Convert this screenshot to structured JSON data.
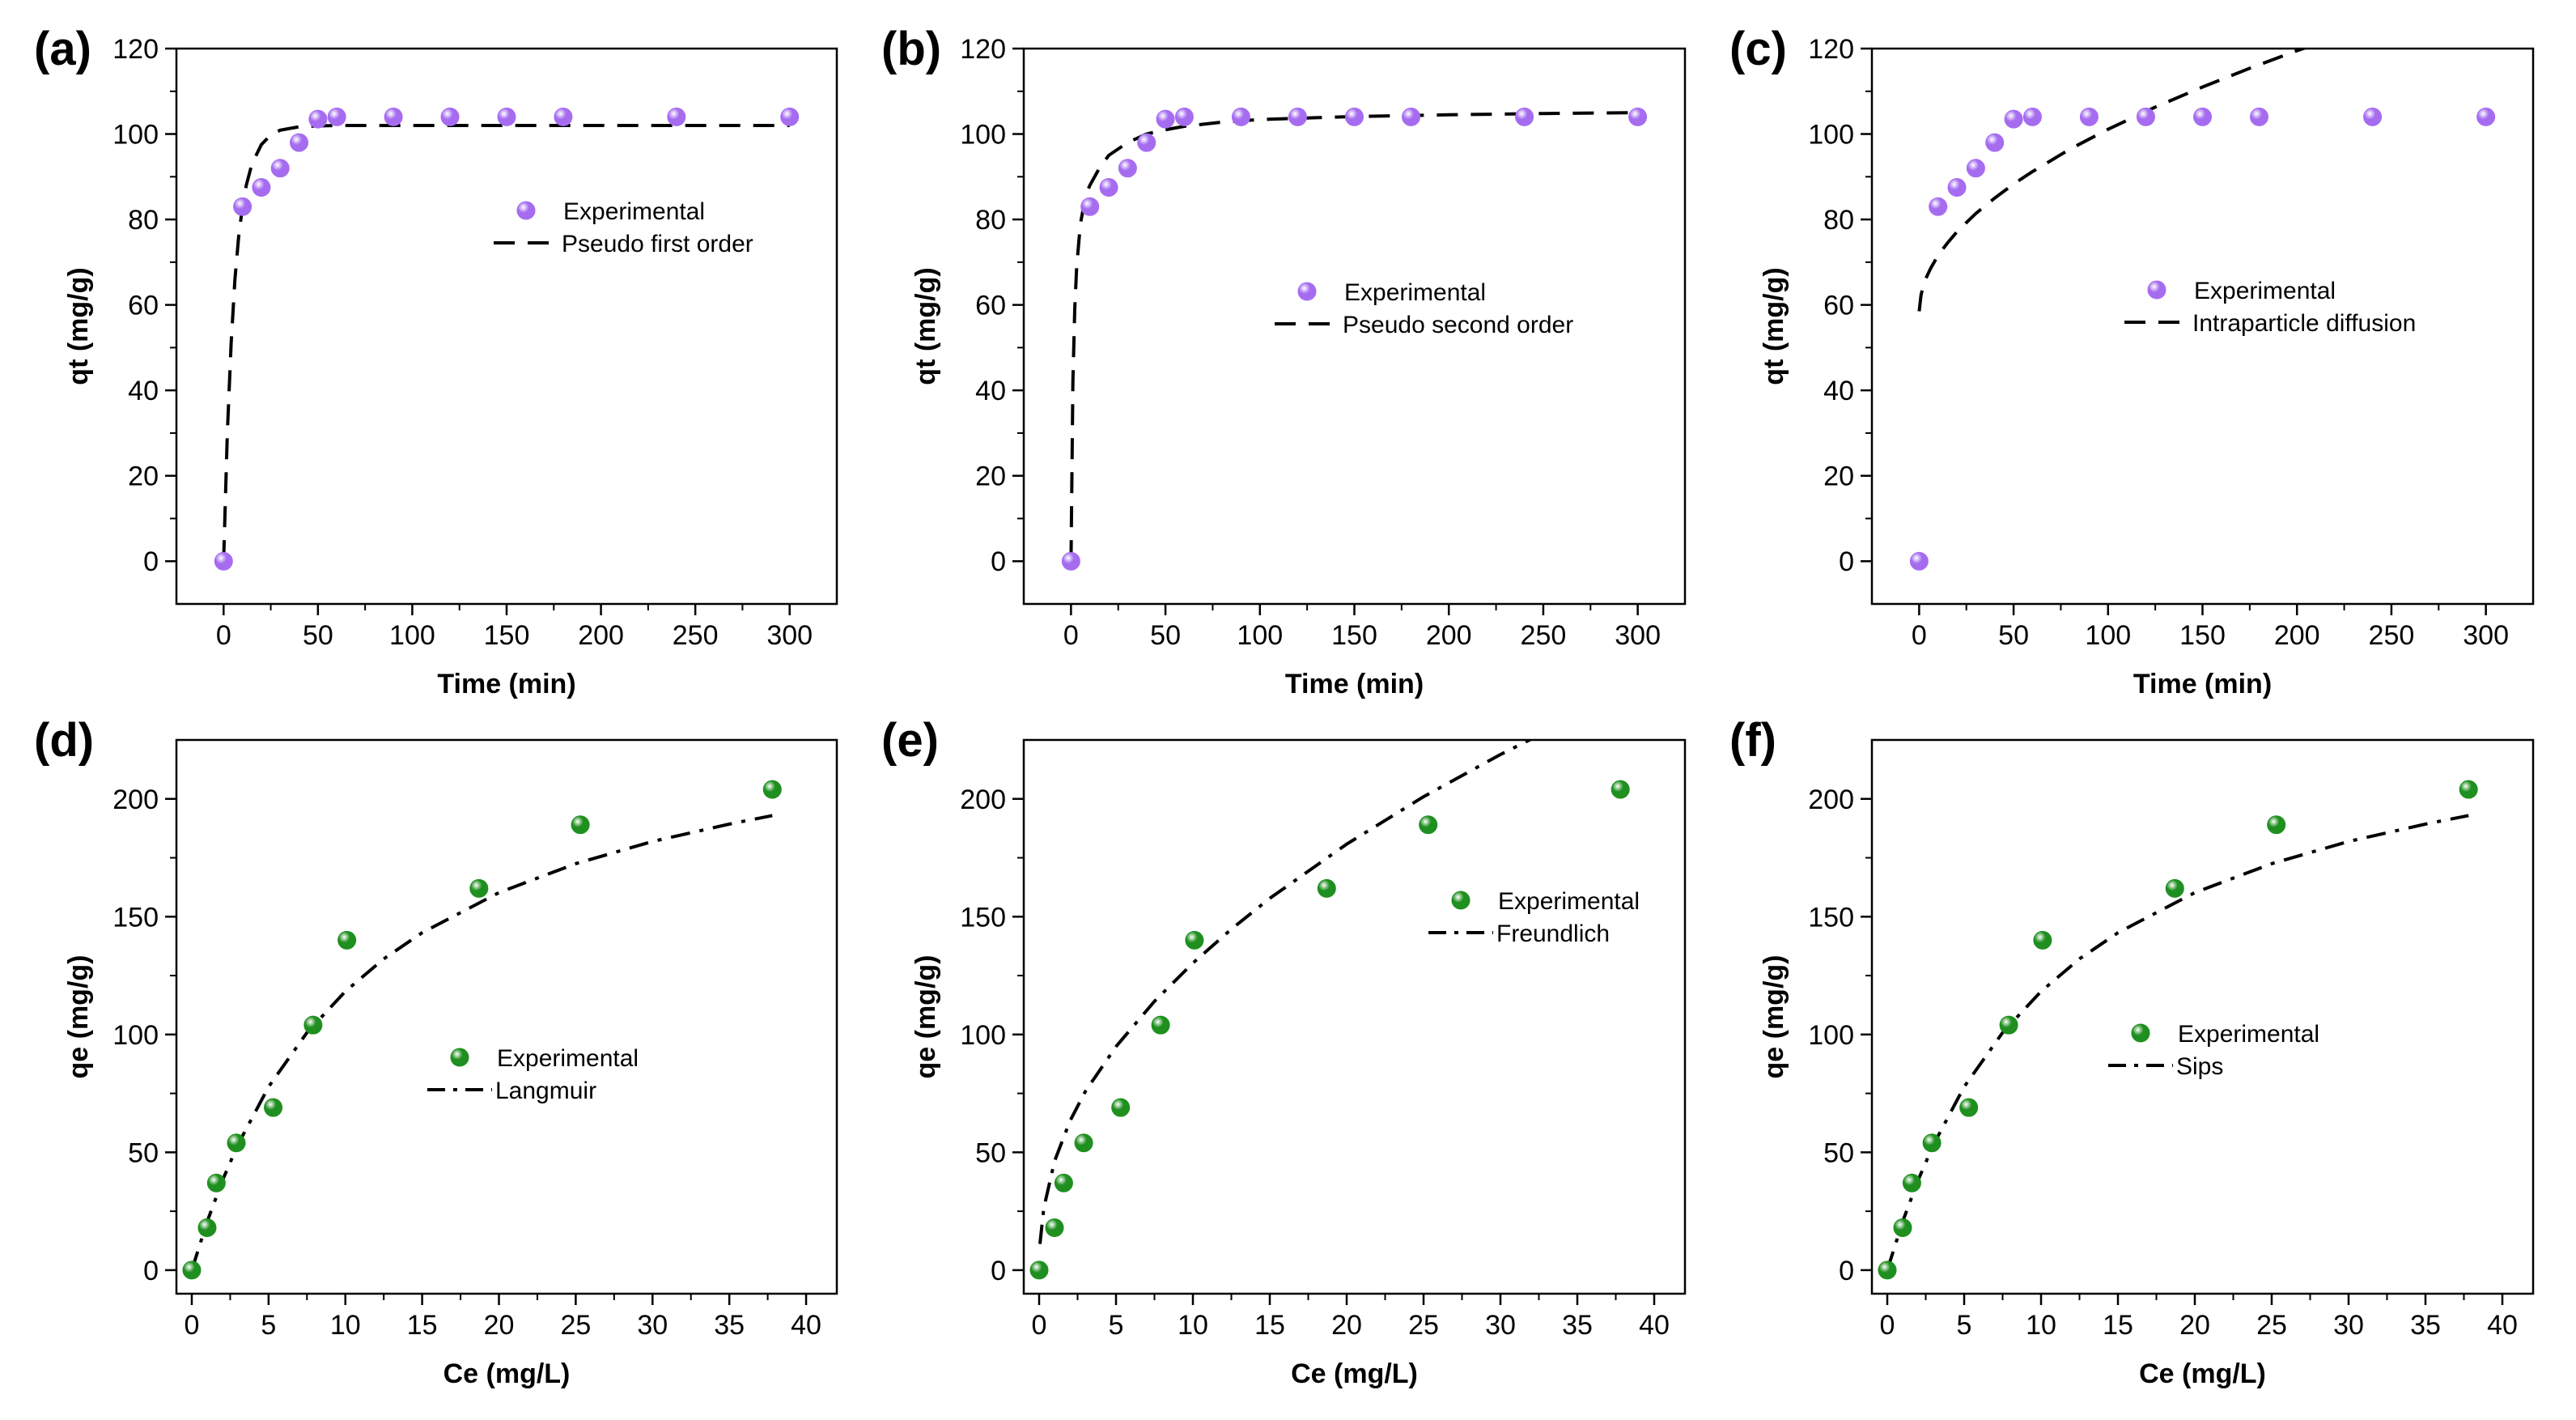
{
  "colors": {
    "kinetic_marker": "#a66cf0",
    "isotherm_marker": "#1f8f1f",
    "fit_line": "#000000"
  },
  "chart_data": [
    {
      "type": "scatter",
      "panel_label": "(a)",
      "xlabel": "Time (min)",
      "ylabel": "qt (mg/g)",
      "xlim": [
        -25,
        325
      ],
      "ylim": [
        -10,
        120
      ],
      "xticks": [
        0,
        50,
        100,
        150,
        200,
        250,
        300
      ],
      "yticks": [
        0,
        20,
        40,
        60,
        80,
        100,
        120
      ],
      "legend_position": "center-right",
      "series": [
        {
          "name": "Experimental",
          "kind": "scatter",
          "marker_color": "#a66cf0",
          "x": [
            0,
            10,
            20,
            30,
            40,
            50,
            60,
            90,
            120,
            150,
            180,
            240,
            300
          ],
          "y": [
            0,
            83,
            87.5,
            92,
            98,
            103.5,
            104,
            104,
            104,
            104,
            104,
            104,
            104
          ]
        },
        {
          "name": "Pseudo first order",
          "kind": "line",
          "dash": "dashed",
          "x": [
            0,
            2,
            4,
            6,
            8,
            10,
            12,
            15,
            20,
            25,
            30,
            40,
            50,
            60,
            80,
            100,
            150,
            200,
            250,
            300
          ],
          "y": [
            0,
            30,
            51,
            66,
            76,
            83,
            88,
            93,
            97.5,
            99.8,
            100.9,
            101.7,
            101.9,
            102,
            102,
            102,
            102,
            102,
            102,
            102
          ]
        }
      ]
    },
    {
      "type": "scatter",
      "panel_label": "(b)",
      "xlabel": "Time (min)",
      "ylabel": "qt (mg/g)",
      "xlim": [
        -25,
        325
      ],
      "ylim": [
        -10,
        120
      ],
      "xticks": [
        0,
        50,
        100,
        150,
        200,
        250,
        300
      ],
      "yticks": [
        0,
        20,
        40,
        60,
        80,
        100,
        120
      ],
      "legend_position": "center-right",
      "series": [
        {
          "name": "Experimental",
          "kind": "scatter",
          "marker_color": "#a66cf0",
          "x": [
            0,
            10,
            20,
            30,
            40,
            50,
            60,
            90,
            120,
            150,
            180,
            240,
            300
          ],
          "y": [
            0,
            83,
            87.5,
            92,
            98,
            103.5,
            104,
            104,
            104,
            104,
            104,
            104,
            104
          ]
        },
        {
          "name": "Pseudo second order",
          "kind": "line",
          "dash": "dashed",
          "x": [
            0,
            1,
            2,
            3,
            5,
            8,
            10,
            15,
            20,
            30,
            40,
            50,
            60,
            80,
            100,
            150,
            200,
            250,
            300
          ],
          "y": [
            0,
            42,
            59,
            69,
            79,
            86,
            88,
            92,
            95,
            98,
            100,
            101,
            101.8,
            102.8,
            103.4,
            104.1,
            104.5,
            104.8,
            105
          ]
        }
      ]
    },
    {
      "type": "scatter",
      "panel_label": "(c)",
      "xlabel": "Time (min)",
      "ylabel": "qt (mg/g)",
      "xlim": [
        -25,
        325
      ],
      "ylim": [
        -10,
        120
      ],
      "xticks": [
        0,
        50,
        100,
        150,
        200,
        250,
        300
      ],
      "yticks": [
        0,
        20,
        40,
        60,
        80,
        100,
        120
      ],
      "legend_position": "center-right",
      "series": [
        {
          "name": "Experimental",
          "kind": "scatter",
          "marker_color": "#a66cf0",
          "x": [
            0,
            10,
            20,
            30,
            40,
            50,
            60,
            90,
            120,
            150,
            180,
            240,
            300
          ],
          "y": [
            0,
            83,
            87.5,
            92,
            98,
            103.5,
            104,
            104,
            104,
            104,
            104,
            104,
            104
          ]
        },
        {
          "name": "Intraparticle diffusion",
          "kind": "line",
          "dash": "dashed",
          "x": [
            0,
            1,
            2,
            4,
            6,
            10,
            15,
            20,
            30,
            40,
            50,
            60,
            80,
            100,
            125,
            150,
            175,
            200,
            225,
            250,
            258
          ],
          "y": [
            58.5,
            62.3,
            64.1,
            66.6,
            68.5,
            71.6,
            74.5,
            77.1,
            81.4,
            85,
            88.3,
            91.2,
            96.5,
            101.1,
            106.3,
            111,
            115.4,
            119.5,
            123.3,
            126.9,
            128
          ]
        }
      ]
    },
    {
      "type": "scatter",
      "panel_label": "(d)",
      "xlabel": "Ce (mg/L)",
      "ylabel": "qe (mg/g)",
      "xlim": [
        -1,
        42
      ],
      "ylim": [
        -10,
        225
      ],
      "xticks": [
        0,
        5,
        10,
        15,
        20,
        25,
        30,
        35,
        40
      ],
      "yticks": [
        0,
        50,
        100,
        150,
        200
      ],
      "legend_position": "center",
      "series": [
        {
          "name": "Experimental",
          "kind": "scatter",
          "marker_color": "#1f8f1f",
          "x": [
            0,
            1,
            1.6,
            2.9,
            5.3,
            7.9,
            10.1,
            18.7,
            25.3,
            37.8
          ],
          "y": [
            0,
            18,
            37,
            54,
            69,
            104,
            140,
            162,
            189,
            204
          ]
        },
        {
          "name": "Langmuir",
          "kind": "line",
          "dash": "dashdot",
          "x": [
            0,
            1,
            2,
            3,
            5,
            7.5,
            10,
            12.5,
            15,
            20,
            25,
            30,
            35,
            37.8
          ],
          "y": [
            0,
            20.6,
            38.1,
            53.2,
            77.8,
            100.8,
            118.3,
            132.1,
            143.2,
            160.2,
            172.5,
            181.9,
            189.3,
            192.9
          ]
        }
      ]
    },
    {
      "type": "scatter",
      "panel_label": "(e)",
      "xlabel": "Ce (mg/L)",
      "ylabel": "qe (mg/g)",
      "xlim": [
        -1,
        42
      ],
      "ylim": [
        -10,
        225
      ],
      "xticks": [
        0,
        5,
        10,
        15,
        20,
        25,
        30,
        35,
        40
      ],
      "yticks": [
        0,
        50,
        100,
        150,
        200
      ],
      "legend_position": "center-right",
      "series": [
        {
          "name": "Experimental",
          "kind": "scatter",
          "marker_color": "#1f8f1f",
          "x": [
            0,
            1,
            1.6,
            2.9,
            5.3,
            7.9,
            10.1,
            18.7,
            25.3,
            37.8
          ],
          "y": [
            0,
            18,
            37,
            54,
            69,
            104,
            140,
            162,
            189,
            204
          ]
        },
        {
          "name": "Freundlich",
          "kind": "line",
          "dash": "dashdot",
          "x": [
            0.05,
            0.3,
            1,
            2,
            3,
            5,
            7.5,
            10,
            12.5,
            15,
            20,
            25,
            30,
            35,
            37.8
          ],
          "y": [
            11.1,
            26.2,
            46.2,
            63.2,
            75.8,
            94.9,
            114.1,
            130.3,
            144.7,
            157.8,
            180.8,
            200.9,
            218.8,
            235.2,
            243.9
          ]
        }
      ]
    },
    {
      "type": "scatter",
      "panel_label": "(f)",
      "xlabel": "Ce (mg/L)",
      "ylabel": "qe (mg/g)",
      "xlim": [
        -1,
        42
      ],
      "ylim": [
        -10,
        225
      ],
      "xticks": [
        0,
        5,
        10,
        15,
        20,
        25,
        30,
        35,
        40
      ],
      "yticks": [
        0,
        50,
        100,
        150,
        200
      ],
      "legend_position": "center",
      "series": [
        {
          "name": "Experimental",
          "kind": "scatter",
          "marker_color": "#1f8f1f",
          "x": [
            0,
            1,
            1.6,
            2.9,
            5.3,
            7.9,
            10.1,
            18.7,
            25.3,
            37.8
          ],
          "y": [
            0,
            18,
            37,
            54,
            69,
            104,
            140,
            162,
            189,
            204
          ]
        },
        {
          "name": "Sips",
          "kind": "line",
          "dash": "dashdot",
          "x": [
            0,
            1,
            2,
            3,
            5,
            7.5,
            10,
            12.5,
            15,
            20,
            25,
            30,
            35,
            37.8
          ],
          "y": [
            0,
            20.6,
            38.1,
            53.2,
            77.8,
            100.8,
            118.3,
            132.1,
            143.2,
            160.2,
            172.5,
            181.9,
            189.3,
            192.9
          ]
        }
      ]
    }
  ]
}
